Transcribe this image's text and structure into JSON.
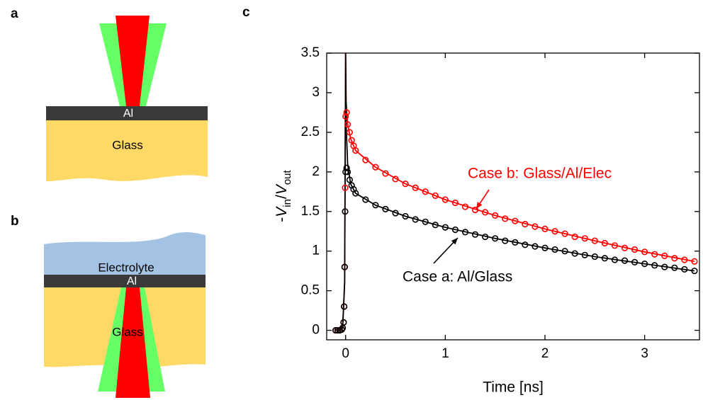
{
  "panels": [
    {
      "label": "a",
      "texts": [
        "Al",
        "Glass"
      ]
    },
    {
      "label": "b",
      "texts": [
        "Electrolyte",
        "Al",
        "Glass"
      ]
    }
  ],
  "chart_data": {
    "type": "scatter",
    "panel_label": "c",
    "xlabel": "Time [ns]",
    "ylabel": [
      "-",
      "V",
      "in",
      "/",
      "V",
      "out"
    ],
    "xlim": [
      -0.19,
      3.55
    ],
    "ylim": [
      -0.12,
      3.5
    ],
    "xticks": [
      0,
      1,
      2,
      3
    ],
    "yticks": [
      0,
      0.5,
      1,
      1.5,
      2,
      2.5,
      3,
      3.5
    ],
    "x": [
      -0.1,
      -0.08,
      -0.06,
      -0.04,
      -0.03,
      -0.02,
      -0.015,
      -0.01,
      -0.005,
      0,
      0.01,
      0.02,
      0.04,
      0.06,
      0.08,
      0.1,
      0.2,
      0.3,
      0.4,
      0.5,
      0.6,
      0.7,
      0.8,
      0.9,
      1.0,
      1.1,
      1.2,
      1.3,
      1.4,
      1.5,
      1.6,
      1.7,
      1.8,
      1.9,
      2.0,
      2.1,
      2.2,
      2.3,
      2.4,
      2.5,
      2.6,
      2.7,
      2.8,
      2.9,
      3.0,
      3.1,
      3.2,
      3.3,
      3.4,
      3.5
    ],
    "series": [
      {
        "name": "Case b: Glass/Al/Elec",
        "color": "#ff0000",
        "values": [
          0,
          0,
          0,
          0.01,
          0.03,
          0.1,
          0.3,
          0.8,
          1.8,
          2.7,
          2.75,
          2.6,
          2.5,
          2.4,
          2.33,
          2.27,
          2.15,
          2.06,
          1.98,
          1.91,
          1.85,
          1.8,
          1.75,
          1.7,
          1.65,
          1.61,
          1.56,
          1.52,
          1.49,
          1.45,
          1.41,
          1.38,
          1.34,
          1.31,
          1.28,
          1.25,
          1.22,
          1.18,
          1.16,
          1.13,
          1.1,
          1.07,
          1.04,
          1.02,
          0.99,
          0.96,
          0.94,
          0.91,
          0.89,
          0.87
        ]
      },
      {
        "name": "Case a: Al/Glass",
        "color": "#000000",
        "values": [
          0,
          0,
          0,
          0.01,
          0.03,
          0.1,
          0.3,
          0.8,
          1.5,
          2.0,
          2.05,
          2.0,
          1.9,
          1.83,
          1.78,
          1.73,
          1.65,
          1.58,
          1.53,
          1.48,
          1.44,
          1.4,
          1.37,
          1.33,
          1.3,
          1.27,
          1.24,
          1.21,
          1.18,
          1.16,
          1.13,
          1.11,
          1.08,
          1.06,
          1.04,
          1.02,
          1.0,
          0.97,
          0.95,
          0.93,
          0.91,
          0.89,
          0.88,
          0.86,
          0.84,
          0.82,
          0.8,
          0.79,
          0.77,
          0.75
        ]
      }
    ],
    "fits": [
      {
        "color": "#ff0000",
        "x": [
          -0.1,
          -0.03,
          -0.01,
          0,
          0.005,
          0.02,
          0.05,
          0.1,
          0.3,
          0.6,
          1,
          1.5,
          2,
          2.5,
          3,
          3.5
        ],
        "values": [
          0,
          0.03,
          0.6,
          3.5,
          2.9,
          2.6,
          2.42,
          2.27,
          2.06,
          1.85,
          1.65,
          1.45,
          1.28,
          1.13,
          0.99,
          0.87
        ]
      },
      {
        "color": "#000000",
        "x": [
          -0.1,
          -0.03,
          -0.01,
          0,
          0.005,
          0.02,
          0.05,
          0.1,
          0.3,
          0.6,
          1,
          1.5,
          2,
          2.5,
          3,
          3.5
        ],
        "values": [
          0,
          0.03,
          0.6,
          3.5,
          2.6,
          2.1,
          1.85,
          1.73,
          1.58,
          1.44,
          1.3,
          1.16,
          1.04,
          0.93,
          0.84,
          0.75
        ]
      }
    ]
  }
}
